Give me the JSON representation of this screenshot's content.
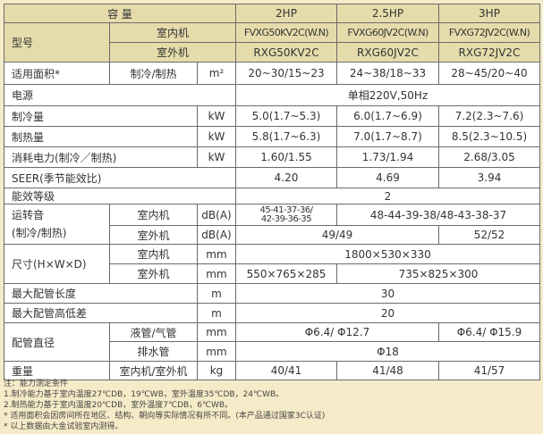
{
  "header": {
    "capacity_label": "容 量",
    "capacities": [
      "2HP",
      "2.5HP",
      "3HP"
    ],
    "model_label": "型号",
    "indoor_label": "室内机",
    "outdoor_label": "室外机",
    "indoor_models": [
      "FVXG50KV2C(W.N)",
      "FVXG60JV2C(W.N)",
      "FVXG72JV2C(W.N)"
    ],
    "outdoor_models": [
      "RXG50KV2C",
      "RXG60JV2C",
      "RXG72JV2C"
    ]
  },
  "rows": {
    "area": {
      "label": "适用面积*",
      "sub": "制冷/制热",
      "unit": "m²",
      "values": [
        "20~30/15~23",
        "24~38/18~33",
        "28~45/20~40"
      ]
    },
    "power": {
      "label": "电源",
      "value": "单相220V,50Hz"
    },
    "cooling": {
      "label": "制冷量",
      "unit": "kW",
      "values": [
        "5.0(1.7~5.3)",
        "6.0(1.7~6.9)",
        "7.2(2.3~7.6)"
      ]
    },
    "heating": {
      "label": "制热量",
      "unit": "kW",
      "values": [
        "5.8(1.7~6.3)",
        "7.0(1.7~8.7)",
        "8.5(2.3~10.5)"
      ]
    },
    "consumption": {
      "label": "消耗电力(制冷／制热)",
      "unit": "kW",
      "values": [
        "1.60/1.55",
        "1.73/1.94",
        "2.68/3.05"
      ]
    },
    "seer": {
      "label": "SEER(季节能效比)",
      "values": [
        "4.20",
        "4.69",
        "3.94"
      ]
    },
    "efficiency": {
      "label": "能效等级",
      "value": "2"
    },
    "noise": {
      "label": "运转音",
      "label2": "(制冷/制热)",
      "indoor": "室内机",
      "outdoor": "室外机",
      "unit": "dB(A)",
      "indoor_2hp_1": "45-41-37-36/",
      "indoor_2hp_2": "42-39-36-35",
      "indoor_other": "48-44-39-38/48-43-38-37",
      "outdoor_a": "49/49",
      "outdoor_b": "52/52"
    },
    "size": {
      "label": "尺寸(H×W×D)",
      "indoor": "室内机",
      "outdoor": "室外机",
      "unit": "mm",
      "indoor_value": "1800×530×330",
      "outdoor_a": "550×765×285",
      "outdoor_b": "735×825×300"
    },
    "pipe_length": {
      "label": "最大配管长度",
      "unit": "m",
      "value": "30"
    },
    "pipe_height": {
      "label": "最大配管高低差",
      "unit": "m",
      "value": "20"
    },
    "pipe_dia": {
      "label": "配管直径",
      "liquid": "液管/气管",
      "drain": "排水管",
      "unit": "mm",
      "liquid_a": "Φ6.4/ Φ12.7",
      "liquid_b": "Φ6.4/ Φ15.9",
      "drain_value": "Φ18"
    },
    "weight": {
      "label": "重量",
      "sub": "室内机/室外机",
      "unit": "kg",
      "values": [
        "40/41",
        "41/48",
        "41/57"
      ]
    }
  },
  "notes": [
    "注：能力测定条件",
    "1.制冷能力基于室内温度27℃DB，19℃WB，室外温度35℃DB，24℃WB。",
    "2.制热能力基于室内温度20℃DB，室外温度7℃DB，6℃WB。",
    "* 适用面积会因房间所在地区、结构、朝向等实际情况有所不同。(本产品通过国家3C认证)",
    "* 以上数据由大金试验室内测得。"
  ]
}
